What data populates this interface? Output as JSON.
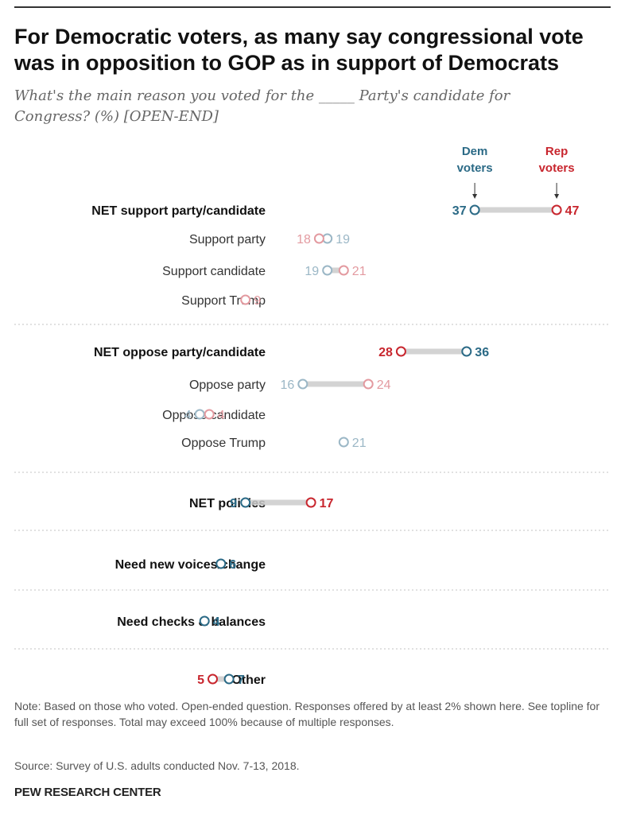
{
  "chart_data": {
    "type": "dot",
    "title": "For Democratic voters, as many say congressional vote was in opposition to GOP as in support of Democrats",
    "subtitle": "What's the main reason you voted for the _____ Party's candidate for Congress? (%) [OPEN-END]",
    "series": [
      {
        "name": "Dem voters",
        "legend_lines": [
          "Dem",
          "voters"
        ],
        "color": "#2b6a86"
      },
      {
        "name": "Rep voters",
        "legend_lines": [
          "Rep",
          "voters"
        ],
        "color": "#c8262e"
      }
    ],
    "rows": [
      {
        "label": "NET support party/candidate",
        "bold": true,
        "dem": 37,
        "rep": 47
      },
      {
        "label": "Support party",
        "bold": false,
        "dem": 19,
        "rep": 18
      },
      {
        "label": "Support candidate",
        "bold": false,
        "dem": 19,
        "rep": 21
      },
      {
        "label": "Support Trump",
        "bold": false,
        "dem": null,
        "rep": 9
      },
      {
        "label": "NET oppose party/candidate",
        "bold": true,
        "dem": 36,
        "rep": 28
      },
      {
        "label": "Oppose party",
        "bold": false,
        "dem": 16,
        "rep": 24
      },
      {
        "label": "Oppose candidate",
        "bold": false,
        "dem": 4,
        "rep": 4
      },
      {
        "label": "Oppose Trump",
        "bold": false,
        "dem": 21,
        "rep": null
      },
      {
        "label": "NET policies",
        "bold": true,
        "dem": 9,
        "rep": 17
      },
      {
        "label": "Need new voices/change",
        "bold": true,
        "dem": 6,
        "rep": null
      },
      {
        "label": "Need checks & balances",
        "bold": true,
        "dem": 4,
        "rep": null
      },
      {
        "label": "Other",
        "bold": true,
        "dem": 7,
        "rep": 5
      }
    ],
    "xlim": [
      0,
      50
    ]
  },
  "note": "Note: Based on those who voted. Open-ended question. Responses offered by at least 2% shown here. See topline for full set of responses. Total may exceed 100% because of multiple responses.",
  "source": "Source: Survey of U.S. adults conducted Nov. 7-13, 2018.",
  "org": "PEW RESEARCH CENTER",
  "colors": {
    "dem": "#2b6a86",
    "rep": "#c8262e",
    "dem_light": "#9bb7c6",
    "rep_light": "#e39aa0",
    "connector": "#cccccc",
    "divider": "#cfcfcf"
  }
}
